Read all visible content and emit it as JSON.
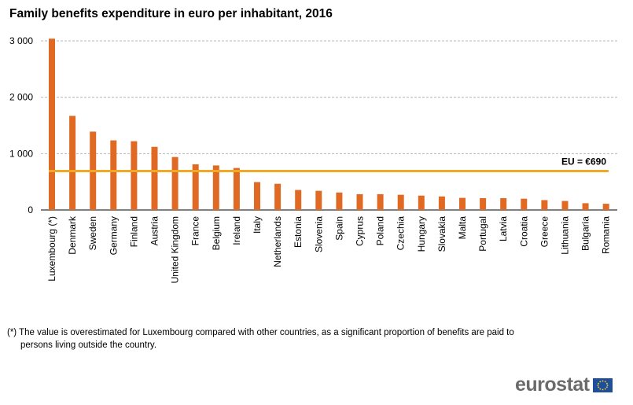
{
  "chart_data": {
    "type": "bar",
    "title": "Family benefits expenditure in euro per inhabitant, 2016",
    "categories": [
      "Luxembourg (*)",
      "Denmark",
      "Sweden",
      "Germany",
      "Finland",
      "Austria",
      "United Kingdom",
      "France",
      "Belgium",
      "Ireland",
      "Italy",
      "Netherlands",
      "Estonia",
      "Slovenia",
      "Spain",
      "Cyprus",
      "Poland",
      "Czechia",
      "Hungary",
      "Slovakia",
      "Malta",
      "Portugal",
      "Latvia",
      "Croatia",
      "Greece",
      "Lithuania",
      "Bulgaria",
      "Romania"
    ],
    "values": [
      3040,
      1670,
      1390,
      1235,
      1220,
      1120,
      940,
      810,
      790,
      745,
      495,
      465,
      355,
      340,
      310,
      280,
      280,
      270,
      255,
      240,
      215,
      210,
      210,
      200,
      175,
      160,
      120,
      110
    ],
    "ylim": [
      0,
      3000
    ],
    "yticks": [
      0,
      1000,
      2000,
      3000
    ],
    "ytick_labels": [
      "0",
      "1 000",
      "2 000",
      "3 000"
    ],
    "grid": true,
    "reference_line": {
      "value": 690,
      "label": "EU = €690"
    },
    "bar_color": "#e06a23",
    "reference_color": "#f0a825"
  },
  "footnote": {
    "line1": "(*) The value is overestimated for Luxembourg compared with other countries, as a significant proportion of benefits are paid to",
    "line2": "persons living outside the country."
  },
  "logo": {
    "text": "eurostat",
    "flag_icon": "eu-flag-icon"
  }
}
